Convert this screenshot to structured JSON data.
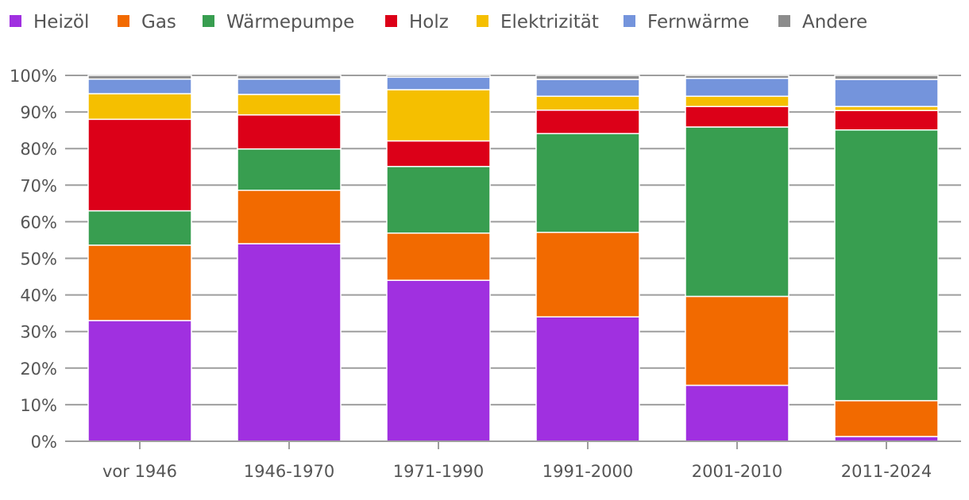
{
  "chart_data": {
    "type": "bar",
    "stacked": true,
    "categories": [
      "vor 1946",
      "1946-1970",
      "1971-1990",
      "1991-2000",
      "2001-2010",
      "2011-2024"
    ],
    "series": [
      {
        "name": "Heizöl",
        "color": "#a030e0",
        "values": [
          33.0,
          54.0,
          44.0,
          34.0,
          15.3,
          1.3
        ]
      },
      {
        "name": "Gas",
        "color": "#f26a00",
        "values": [
          20.6,
          14.6,
          12.9,
          23.1,
          24.3,
          9.8
        ]
      },
      {
        "name": "Wärmepumpe",
        "color": "#389e50",
        "values": [
          9.4,
          11.3,
          18.2,
          27.0,
          46.3,
          74.0
        ]
      },
      {
        "name": "Holz",
        "color": "#dc0018",
        "values": [
          25.0,
          9.3,
          7.0,
          6.4,
          5.6,
          5.3
        ]
      },
      {
        "name": "Elektrizität",
        "color": "#f5bf00",
        "values": [
          7.0,
          5.6,
          14.0,
          3.8,
          2.8,
          1.1
        ]
      },
      {
        "name": "Fernwärme",
        "color": "#7494dc",
        "values": [
          4.0,
          4.2,
          3.4,
          4.6,
          4.9,
          7.4
        ]
      },
      {
        "name": "Andere",
        "color": "#8c8c8c",
        "values": [
          1.0,
          1.0,
          0.5,
          1.1,
          0.8,
          1.1
        ]
      }
    ],
    "yticks": [
      "0%",
      "10%",
      "20%",
      "30%",
      "40%",
      "50%",
      "60%",
      "70%",
      "80%",
      "90%",
      "100%"
    ],
    "ylim": [
      0,
      100
    ],
    "grid": true,
    "legend": "top"
  }
}
